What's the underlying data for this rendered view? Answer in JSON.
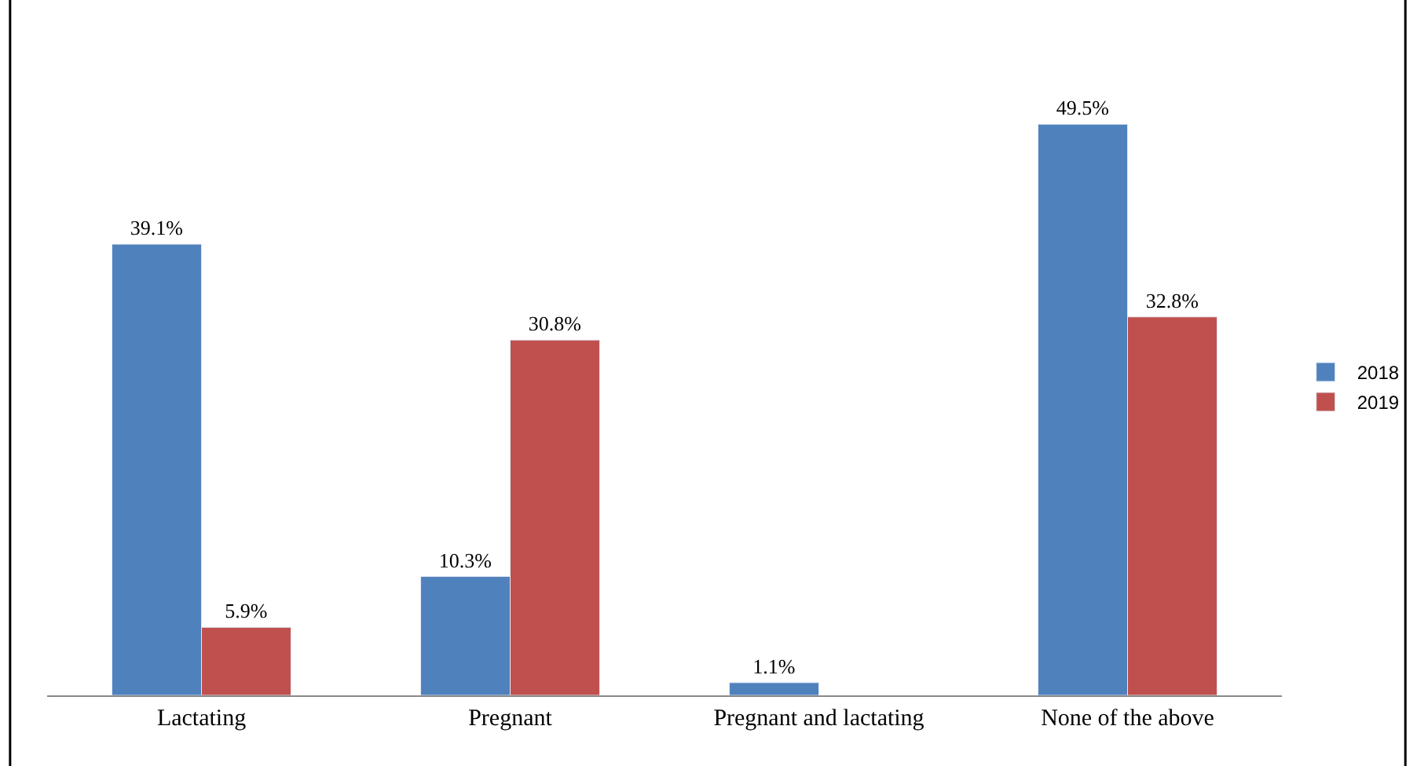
{
  "chart_data": {
    "type": "bar",
    "categories": [
      "Lactating",
      "Pregnant",
      "Pregnant and lactating",
      "None of the above"
    ],
    "series": [
      {
        "name": "2018",
        "color": "#4f81bd",
        "values": [
          39.1,
          10.3,
          1.1,
          49.5
        ],
        "value_labels": [
          "39.1%",
          "10.3%",
          "1.1%",
          "49.5%"
        ]
      },
      {
        "name": "2019",
        "color": "#c0504d",
        "values": [
          5.9,
          30.8,
          null,
          32.8
        ],
        "value_labels": [
          "5.9%",
          "30.8%",
          null,
          "32.8%"
        ]
      }
    ],
    "legend": "right",
    "tick_labels": "x"
  }
}
